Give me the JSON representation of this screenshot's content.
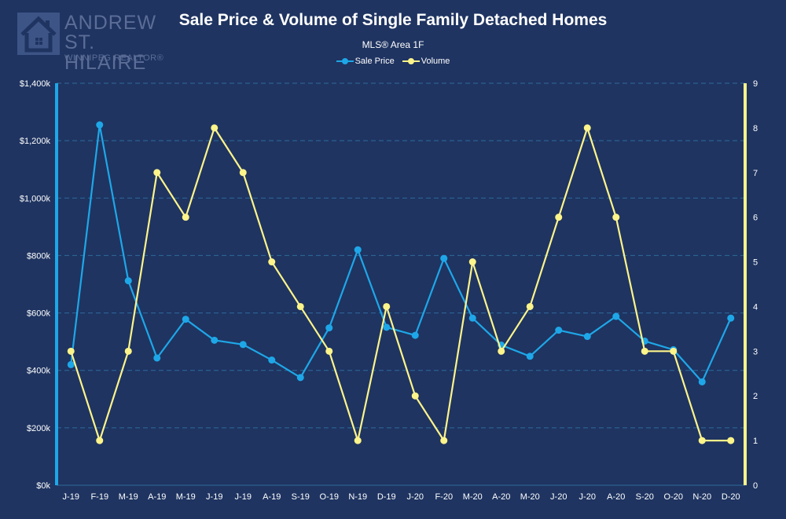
{
  "logo": {
    "line1": "ANDREW",
    "line2": "ST. HILAIRE",
    "line3": "WINNIPEG REALTOR®",
    "icon": "house-icon"
  },
  "chart_data": {
    "type": "line",
    "title": "Sale Price & Volume of Single Family Detached Homes",
    "subtitle": "MLS® Area 1F",
    "categories": [
      "J-19",
      "F-19",
      "M-19",
      "A-19",
      "M-19",
      "J-19",
      "J-19",
      "A-19",
      "S-19",
      "O-19",
      "N-19",
      "D-19",
      "J-20",
      "F-20",
      "M-20",
      "A-20",
      "M-20",
      "J-20",
      "J-20",
      "A-20",
      "S-20",
      "O-20",
      "N-20",
      "D-20"
    ],
    "series": [
      {
        "name": "Sale Price",
        "color": "#1ea7e8",
        "axis": "left",
        "values": [
          420000,
          1255000,
          712000,
          443000,
          578000,
          505000,
          490000,
          436000,
          375000,
          548000,
          820000,
          550000,
          522000,
          790000,
          582000,
          488000,
          449000,
          540000,
          518000,
          588000,
          502000,
          472000,
          360000,
          582000
        ]
      },
      {
        "name": "Volume",
        "color": "#fdf48a",
        "axis": "right",
        "values": [
          3,
          1,
          3,
          7,
          6,
          8,
          7,
          5,
          4,
          3,
          1,
          4,
          2,
          1,
          5,
          3,
          4,
          6,
          8,
          6,
          3,
          3,
          1,
          1
        ]
      }
    ],
    "y_left": {
      "range": [
        0,
        1400000
      ],
      "ticks": [
        0,
        200000,
        400000,
        600000,
        800000,
        1000000,
        1200000,
        1400000
      ],
      "tick_labels": [
        "$0k",
        "$200k",
        "$400k",
        "$600k",
        "$800k",
        "$1,000k",
        "$1,200k",
        "$1,400k"
      ],
      "axis_color": "#1ea7e8"
    },
    "y_right": {
      "range": [
        0,
        9
      ],
      "ticks": [
        0,
        1,
        2,
        3,
        4,
        5,
        6,
        7,
        8,
        9
      ],
      "tick_labels": [
        "0",
        "1",
        "2",
        "3",
        "4",
        "5",
        "6",
        "7",
        "8",
        "9"
      ],
      "axis_color": "#fdf48a"
    },
    "grid": true,
    "grid_color": "#2f6a9c",
    "legend_position": "top-center"
  }
}
